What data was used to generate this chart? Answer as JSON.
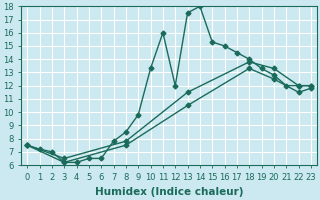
{
  "xlabel": "Humidex (Indice chaleur)",
  "bg_color": "#cce8f0",
  "line_color": "#1a6b5a",
  "grid_color": "#ffffff",
  "xlim": [
    -0.5,
    23.5
  ],
  "ylim": [
    6,
    18
  ],
  "xticks": [
    0,
    1,
    2,
    3,
    4,
    5,
    6,
    7,
    8,
    9,
    10,
    11,
    12,
    13,
    14,
    15,
    16,
    17,
    18,
    19,
    20,
    21,
    22,
    23
  ],
  "yticks": [
    6,
    7,
    8,
    9,
    10,
    11,
    12,
    13,
    14,
    15,
    16,
    17,
    18
  ],
  "line1_x": [
    0,
    1,
    2,
    3,
    4,
    5,
    6,
    7,
    8,
    9,
    10,
    11,
    12,
    13,
    14,
    15,
    16,
    17,
    18,
    19,
    20,
    21,
    22,
    23
  ],
  "line1_y": [
    7.5,
    7.2,
    7.0,
    6.2,
    6.2,
    6.5,
    6.5,
    7.8,
    8.5,
    9.8,
    13.3,
    16.0,
    12.0,
    17.5,
    18.0,
    15.3,
    15.0,
    14.5,
    14.0,
    13.3,
    12.8,
    12.0,
    12.0,
    12.0
  ],
  "line2_x": [
    0,
    3,
    8,
    13,
    18,
    20,
    22,
    23
  ],
  "line2_y": [
    7.5,
    6.5,
    7.8,
    11.5,
    13.8,
    13.3,
    12.0,
    12.0
  ],
  "line3_x": [
    0,
    3,
    8,
    13,
    18,
    20,
    22,
    23
  ],
  "line3_y": [
    7.5,
    6.2,
    7.5,
    10.5,
    13.3,
    12.5,
    11.5,
    11.8
  ],
  "marker": "D",
  "markersize": 2.5,
  "linewidth": 1.0,
  "xlabel_fontsize": 7.5,
  "tick_fontsize": 6
}
